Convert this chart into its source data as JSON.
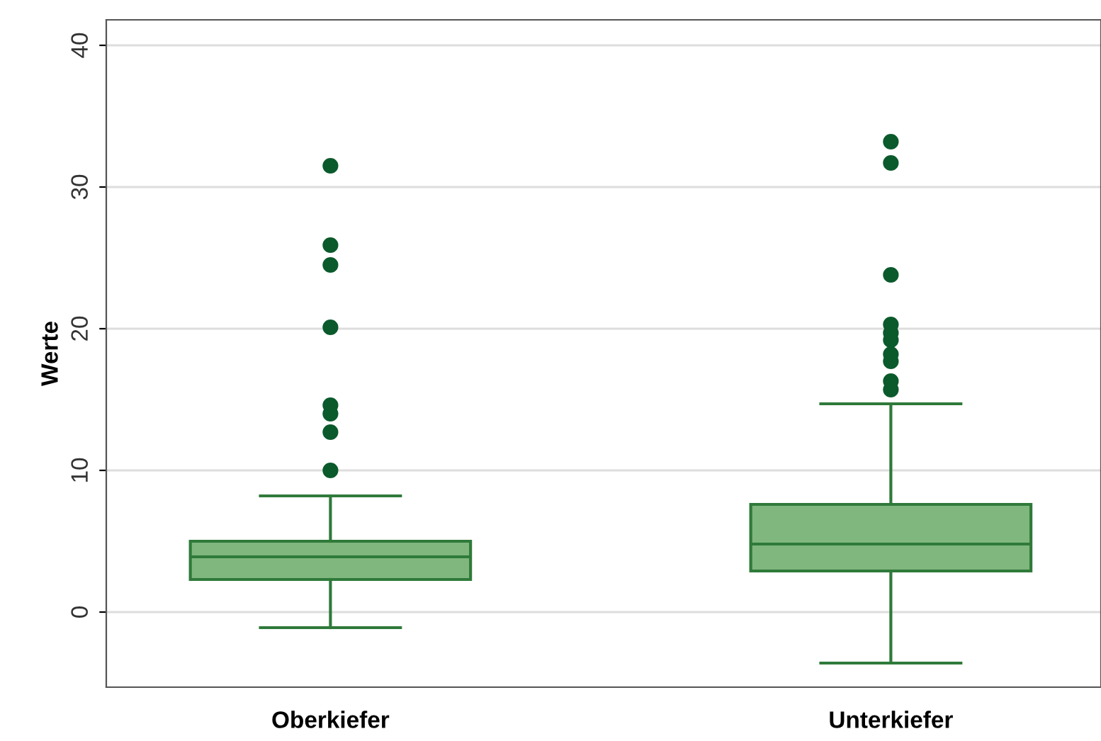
{
  "chart_data": {
    "type": "box",
    "ylabel": "Werte",
    "categories": [
      "Oberkiefer",
      "Unterkiefer"
    ],
    "boxes": [
      {
        "low": -1.1,
        "q1": 2.3,
        "median": 3.9,
        "q3": 5.0,
        "high": 8.2,
        "outliers": [
          10.0,
          12.7,
          14.0,
          14.6,
          20.1,
          24.5,
          25.9,
          31.5
        ]
      },
      {
        "low": -3.6,
        "q1": 2.9,
        "median": 4.8,
        "q3": 7.6,
        "high": 14.7,
        "outliers": [
          15.7,
          16.3,
          17.7,
          18.2,
          19.2,
          19.7,
          20.3,
          23.8,
          31.7,
          33.2
        ]
      }
    ],
    "color": "#80b77e",
    "ylim": [
      -5.3,
      41.8
    ],
    "yticks": [
      0,
      10,
      20,
      30,
      40
    ],
    "grid": "y"
  }
}
